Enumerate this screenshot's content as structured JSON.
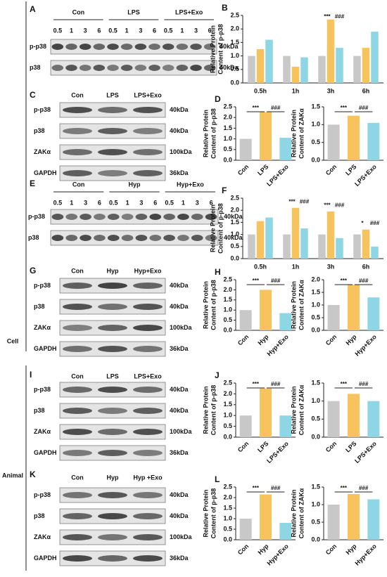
{
  "side_labels": [
    "Cell",
    "Animal"
  ],
  "blots": [
    {
      "label": "A",
      "groups": [
        "Con",
        "LPS",
        "LPS+Exo"
      ],
      "lanes": [
        "0.5",
        "1",
        "3",
        "6",
        "0.5",
        "1",
        "3",
        "6",
        "0.5",
        "1",
        "3",
        "6"
      ],
      "rows": [
        {
          "name": "p-p38",
          "size": "40kDa"
        },
        {
          "name": "p38",
          "size": "40kDa"
        }
      ]
    },
    {
      "label": "C",
      "groups": [
        "Con",
        "LPS",
        "LPS+Exo"
      ],
      "rows": [
        {
          "name": "p-p38",
          "size": "40kDa"
        },
        {
          "name": "p38",
          "size": "40kDa"
        },
        {
          "name": "ZAKα",
          "size": "100kDa"
        },
        {
          "name": "GAPDH",
          "size": "36kDa"
        }
      ]
    },
    {
      "label": "E",
      "groups": [
        "Con",
        "Hyp",
        "Hyp+Exo"
      ],
      "lanes": [
        "0.5",
        "1",
        "3",
        "6",
        "0.5",
        "1",
        "3",
        "6",
        "0.5",
        "1",
        "3",
        "6"
      ],
      "rows": [
        {
          "name": "p-p38",
          "size": "40kDa"
        },
        {
          "name": "p38",
          "size": "40kDa"
        }
      ]
    },
    {
      "label": "G",
      "groups": [
        "Con",
        "Hyp",
        "Hyp+Exo"
      ],
      "rows": [
        {
          "name": "p-p38",
          "size": "40kDa"
        },
        {
          "name": "p38",
          "size": "40kDa"
        },
        {
          "name": "ZAKα",
          "size": "100kDa"
        },
        {
          "name": "GAPDH",
          "size": "36kDa"
        }
      ]
    },
    {
      "label": "I",
      "groups": [
        "Con",
        "LPS",
        "LPS+Exo"
      ],
      "rows": [
        {
          "name": "p-p38",
          "size": "40kDa"
        },
        {
          "name": "p38",
          "size": "40kDa"
        },
        {
          "name": "ZAKα",
          "size": "100kDa"
        },
        {
          "name": "GAPDH",
          "size": "36kDa"
        }
      ]
    },
    {
      "label": "K",
      "groups": [
        "Con",
        "Hyp",
        "Hyp +Exo"
      ],
      "rows": [
        {
          "name": "p-p38",
          "size": "40kDa"
        },
        {
          "name": "p38",
          "size": "40kDa"
        },
        {
          "name": "ZAKα",
          "size": "100kDa"
        },
        {
          "name": "GAPDH",
          "size": "36kDa"
        }
      ]
    }
  ],
  "chart_data": [
    {
      "type": "bar",
      "label": "B",
      "ylabel": [
        "Relative Protein",
        "Content of p-p38"
      ],
      "categories": [
        "0.5h",
        "1h",
        "3h",
        "6h"
      ],
      "series": [
        {
          "color": "#c8c8c8",
          "values": [
            1.0,
            1.0,
            1.0,
            1.0
          ]
        },
        {
          "color": "#f6c35c",
          "values": [
            1.25,
            0.6,
            2.35,
            1.3
          ]
        },
        {
          "color": "#8fd6e4",
          "values": [
            1.6,
            0.95,
            1.3,
            1.9
          ]
        }
      ],
      "ylim": [
        0,
        2.5
      ],
      "yticks": [
        {
          "value": 0,
          "label": "0.0"
        },
        0.5,
        {
          "value": 1,
          "label": "1.0"
        },
        1.5,
        {
          "value": 2,
          "label": "2.0"
        },
        2.5
      ],
      "annotations": [
        "***",
        "###"
      ]
    },
    {
      "type": "bar",
      "label": "D",
      "ylabel": [
        "Relative Protein",
        "Content of p-p38"
      ],
      "categories": [
        "Con",
        "LPS",
        "LPS+Exo"
      ],
      "values": [
        1.0,
        2.25,
        1.05
      ],
      "colors": [
        "#c8c8c8",
        "#f6c35c",
        "#8fd6e4"
      ],
      "ylim": [
        0,
        2.5
      ],
      "yticks": [
        {
          "value": 0,
          "label": "0.0"
        },
        0.5,
        {
          "value": 1,
          "label": "1.0"
        },
        1.5,
        {
          "value": 2,
          "label": "2.0"
        },
        2.5
      ],
      "annotations": [
        "***",
        "###"
      ]
    },
    {
      "type": "bar",
      "ylabel": [
        "Relative Protein",
        "Content of ZAKα"
      ],
      "categories": [
        "Con",
        "LPS",
        "LPS+Exo"
      ],
      "values": [
        1.0,
        1.25,
        1.05
      ],
      "colors": [
        "#c8c8c8",
        "#f6c35c",
        "#8fd6e4"
      ],
      "ylim": [
        0,
        1.5
      ],
      "yticks": [
        {
          "value": 0,
          "label": "0.0"
        },
        0.5,
        {
          "value": 1,
          "label": "1.0"
        },
        1.5
      ],
      "annotations": [
        "***",
        "###"
      ]
    },
    {
      "type": "bar",
      "label": "F",
      "ylabel": [
        "Relative Protein",
        "Content of p-p38"
      ],
      "categories": [
        "0.5h",
        "1h",
        "3h",
        "6h"
      ],
      "series": [
        {
          "color": "#c8c8c8",
          "values": [
            1.0,
            1.0,
            1.0,
            1.0
          ]
        },
        {
          "color": "#f6c35c",
          "values": [
            1.55,
            2.1,
            1.95,
            1.2
          ]
        },
        {
          "color": "#8fd6e4",
          "values": [
            1.7,
            1.25,
            0.85,
            0.5
          ]
        }
      ],
      "ylim": [
        0,
        2.5
      ],
      "yticks": [
        {
          "value": 0,
          "label": "0.0"
        },
        0.5,
        {
          "value": 1,
          "label": "1.0"
        },
        1.5,
        {
          "value": 2,
          "label": "2.0"
        },
        2.5
      ],
      "annotations": [
        "***",
        "###",
        "***",
        "###",
        "*",
        "###"
      ]
    },
    {
      "type": "bar",
      "label": "H",
      "ylabel": [
        "Relative Protein",
        "Content of p-p38"
      ],
      "categories": [
        "Con",
        "Hyp",
        "Hyp+Exo"
      ],
      "values": [
        1.0,
        2.0,
        0.85
      ],
      "colors": [
        "#c8c8c8",
        "#f6c35c",
        "#8fd6e4"
      ],
      "ylim": [
        0,
        2.5
      ],
      "yticks": [
        {
          "value": 0,
          "label": "0.0"
        },
        0.5,
        {
          "value": 1,
          "label": "1.0"
        },
        1.5,
        {
          "value": 2,
          "label": "2.0"
        },
        2.5
      ],
      "annotations": [
        "***",
        "###"
      ]
    },
    {
      "type": "bar",
      "ylabel": [
        "Relative Protein",
        "Content of ZAKα"
      ],
      "categories": [
        "Con",
        "Hyp",
        "Hyp+Exo"
      ],
      "values": [
        1.0,
        1.8,
        1.3
      ],
      "colors": [
        "#c8c8c8",
        "#f6c35c",
        "#8fd6e4"
      ],
      "ylim": [
        0,
        2.0
      ],
      "yticks": [
        {
          "value": 0,
          "label": "0.0"
        },
        0.5,
        {
          "value": 1,
          "label": "1.0"
        },
        1.5,
        {
          "value": 2,
          "label": "2.0"
        }
      ],
      "annotations": [
        "***",
        "###"
      ]
    },
    {
      "type": "bar",
      "label": "J",
      "ylabel": [
        "Relative Protein",
        "Content of p-p38"
      ],
      "categories": [
        "Con",
        "LPS",
        "LPS+Exo"
      ],
      "values": [
        1.0,
        2.25,
        1.0
      ],
      "colors": [
        "#c8c8c8",
        "#f6c35c",
        "#8fd6e4"
      ],
      "ylim": [
        0,
        2.5
      ],
      "yticks": [
        {
          "value": 0,
          "label": "0.0"
        },
        0.5,
        {
          "value": 1,
          "label": "1.0"
        },
        1.5,
        {
          "value": 2,
          "label": "2.0"
        },
        2.5
      ],
      "annotations": [
        "***",
        "###"
      ]
    },
    {
      "type": "bar",
      "ylabel": [
        "Relative Protein",
        "Content of ZAKα"
      ],
      "categories": [
        "Con",
        "LPS",
        "LPS+Exo"
      ],
      "values": [
        1.0,
        1.2,
        1.0
      ],
      "colors": [
        "#c8c8c8",
        "#f6c35c",
        "#8fd6e4"
      ],
      "ylim": [
        0,
        1.5
      ],
      "yticks": [
        {
          "value": 0,
          "label": "0.0"
        },
        0.5,
        {
          "value": 1,
          "label": "1.0"
        },
        1.5
      ],
      "annotations": [
        "***",
        "###"
      ]
    },
    {
      "type": "bar",
      "label": "L",
      "ylabel": [
        "Relative Protein",
        "Content of p-p38"
      ],
      "categories": [
        "Con",
        "Hyp",
        "Hyp+Exo"
      ],
      "values": [
        1.0,
        2.15,
        0.8
      ],
      "colors": [
        "#c8c8c8",
        "#f6c35c",
        "#8fd6e4"
      ],
      "ylim": [
        0,
        2.5
      ],
      "yticks": [
        {
          "value": 0,
          "label": "0.0"
        },
        0.5,
        {
          "value": 1,
          "label": "1.0"
        },
        1.5,
        {
          "value": 2,
          "label": "2.0"
        },
        2.5
      ],
      "annotations": [
        "***",
        "###"
      ]
    },
    {
      "type": "bar",
      "ylabel": [
        "Relative Protein",
        "Content of ZAKα"
      ],
      "categories": [
        "Con",
        "Hyp",
        "Hyp+Exo"
      ],
      "values": [
        1.0,
        1.3,
        1.15
      ],
      "colors": [
        "#c8c8c8",
        "#f6c35c",
        "#8fd6e4"
      ],
      "ylim": [
        0,
        1.5
      ],
      "yticks": [
        {
          "value": 0,
          "label": "0.0"
        },
        0.5,
        {
          "value": 1,
          "label": "1.0"
        },
        1.5
      ],
      "annotations": [
        "***",
        "###"
      ]
    }
  ]
}
